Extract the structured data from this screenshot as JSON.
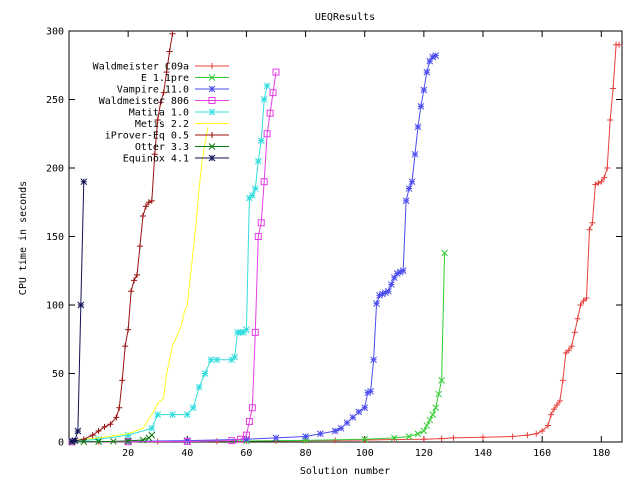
{
  "chart_data": {
    "type": "scatter",
    "title": "UEQResults",
    "xlabel": "Solution number",
    "ylabel": "CPU time in seconds",
    "xlim": [
      0,
      187
    ],
    "ylim": [
      0,
      300
    ],
    "x_ticks": [
      20,
      40,
      60,
      80,
      100,
      120,
      140,
      160,
      180
    ],
    "y_ticks": [
      0,
      50,
      100,
      150,
      200,
      250,
      300
    ],
    "grid": false,
    "legend_position": "top-left",
    "series": [
      {
        "name": "Waldmeister C09a",
        "color": "#e8413d",
        "marker": "plus",
        "x": [
          1,
          10,
          20,
          30,
          40,
          50,
          60,
          70,
          80,
          90,
          100,
          110,
          120,
          126,
          130,
          140,
          150,
          155,
          158,
          160,
          162,
          163,
          164,
          165,
          166,
          167,
          168,
          169,
          170,
          171,
          172,
          173,
          174,
          175,
          176,
          177,
          178,
          179,
          180,
          181,
          182,
          183,
          184,
          185,
          186
        ],
        "y": [
          0.1,
          0.2,
          0.3,
          0.4,
          0.5,
          0.6,
          0.7,
          0.8,
          1,
          1.2,
          1.5,
          1.8,
          2,
          2.5,
          3,
          3.5,
          4,
          5,
          6,
          8,
          12,
          20,
          24,
          27,
          30,
          45,
          65,
          67,
          70,
          80,
          90,
          100,
          103,
          105,
          155,
          160,
          188,
          189,
          190,
          193,
          200,
          235,
          258,
          290,
          290
        ]
      },
      {
        "name": "E 1.1pre",
        "color": "#33cc33",
        "marker": "x",
        "x": [
          1,
          20,
          40,
          60,
          80,
          100,
          110,
          115,
          118,
          120,
          121,
          122,
          123,
          124,
          125,
          126,
          127
        ],
        "y": [
          0.1,
          0.3,
          0.5,
          0.8,
          1.2,
          2,
          3,
          4,
          6,
          8,
          12,
          16,
          20,
          25,
          35,
          45,
          138
        ]
      },
      {
        "name": "Vampire 11.0",
        "color": "#4c4cee",
        "marker": "star",
        "x": [
          1,
          20,
          40,
          60,
          70,
          80,
          85,
          90,
          92,
          94,
          96,
          98,
          100,
          101,
          102,
          103,
          104,
          105,
          106,
          107,
          108,
          109,
          110,
          111,
          112,
          113,
          114,
          115,
          116,
          117,
          118,
          119,
          120,
          121,
          122,
          123,
          124
        ],
        "y": [
          0.2,
          0.5,
          1,
          2,
          3,
          4,
          6,
          8,
          10,
          14,
          18,
          22,
          25,
          36,
          37,
          60,
          101,
          107,
          108,
          109,
          110,
          115,
          120,
          123,
          124,
          125,
          176,
          185,
          190,
          210,
          230,
          245,
          257,
          270,
          278,
          281,
          282
        ]
      },
      {
        "name": "Waldmeister 806",
        "color": "#e23ee2",
        "marker": "square",
        "x": [
          1,
          20,
          40,
          55,
          58,
          60,
          61,
          62,
          63,
          64,
          65,
          66,
          67,
          68,
          69,
          70
        ],
        "y": [
          0.1,
          0.2,
          0.4,
          1,
          2,
          5,
          15,
          25,
          80,
          150,
          160,
          190,
          225,
          240,
          255,
          270
        ]
      },
      {
        "name": "Matita 1.0",
        "color": "#33dddd",
        "marker": "star",
        "x": [
          1,
          10,
          20,
          28,
          30,
          35,
          40,
          42,
          44,
          46,
          48,
          50,
          55,
          56,
          57,
          58,
          59,
          60,
          61,
          62,
          63,
          64,
          65,
          66,
          67
        ],
        "y": [
          0.5,
          2,
          5,
          10,
          20,
          20,
          20,
          25,
          40,
          50,
          60,
          60,
          60,
          62,
          80,
          80,
          80,
          82,
          178,
          180,
          185,
          205,
          220,
          250,
          260
        ]
      },
      {
        "name": "Metis 2.2",
        "color": "#ffff22",
        "marker": "line",
        "x": [
          1,
          10,
          20,
          25,
          28,
          30,
          31,
          32,
          33,
          34,
          35,
          36,
          37,
          38,
          39,
          40,
          41,
          42,
          43,
          44,
          45,
          46,
          47
        ],
        "y": [
          1,
          3,
          6,
          10,
          20,
          28,
          30,
          32,
          50,
          60,
          70,
          75,
          80,
          85,
          95,
          100,
          120,
          140,
          160,
          185,
          205,
          218,
          230
        ]
      },
      {
        "name": "iProver-Eq 0.5",
        "color": "#991111",
        "marker": "plus",
        "x": [
          1,
          5,
          8,
          10,
          12,
          14,
          16,
          17,
          18,
          19,
          20,
          21,
          22,
          23,
          24,
          25,
          26,
          27,
          28,
          29,
          30,
          31,
          32,
          33,
          34,
          35
        ],
        "y": [
          0.5,
          2,
          5,
          8,
          11,
          13,
          18,
          25,
          45,
          70,
          82,
          110,
          118,
          122,
          143,
          165,
          172,
          175,
          176,
          210,
          235,
          248,
          255,
          270,
          285,
          298
        ]
      },
      {
        "name": "Otter 3.3",
        "color": "#117711",
        "marker": "x",
        "x": [
          1,
          5,
          10,
          15,
          20,
          25,
          27,
          28
        ],
        "y": [
          0.1,
          0.2,
          0.3,
          0.5,
          0.8,
          1.5,
          3,
          5
        ]
      },
      {
        "name": "Equinox 4.1",
        "color": "#111155",
        "marker": "star",
        "x": [
          1,
          2,
          3,
          4,
          5
        ],
        "y": [
          0.5,
          1,
          8,
          100,
          190
        ]
      }
    ]
  }
}
